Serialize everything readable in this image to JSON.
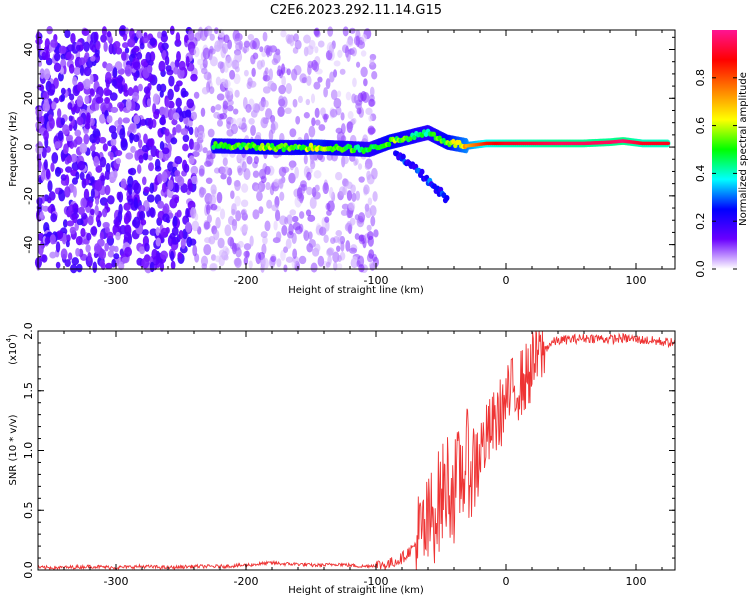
{
  "chart_data": [
    {
      "type": "heatmap",
      "title": "C2E6.2023.292.11.14.G15",
      "xlabel": "Height of straight line (km)",
      "ylabel": "Frequency (Hz)",
      "xlim": [
        -360,
        130
      ],
      "ylim": [
        -50,
        48
      ],
      "x_ticks": [
        -300,
        -200,
        -100,
        0,
        100
      ],
      "x_tick_labels": [
        "-300",
        "-200",
        "-100",
        "0",
        "100"
      ],
      "y_ticks": [
        -40,
        -20,
        0,
        20,
        40
      ],
      "y_tick_labels": [
        "-40",
        "-20",
        "0",
        "20",
        "40"
      ],
      "colorbar": {
        "label": "Normalized spectral amplitude",
        "range": [
          0.0,
          1.0
        ],
        "ticks": [
          0.0,
          0.2,
          0.4,
          0.6,
          0.8
        ],
        "tick_labels": [
          "0.0",
          "0.2",
          "0.4",
          "0.6",
          "0.8"
        ],
        "colors": [
          "#ffffff",
          "#6a00ff",
          "#0000ff",
          "#00ffff",
          "#00ff00",
          "#ffff00",
          "#ff8000",
          "#ff0000",
          "#ff1493"
        ]
      },
      "noise_region": {
        "x_range": [
          -360,
          -100
        ],
        "density": "high below -240 km"
      },
      "signal_trace": [
        {
          "x": -225,
          "y": 0.5,
          "v": 0.5
        },
        {
          "x": -205,
          "y": 0.3,
          "v": 0.5
        },
        {
          "x": -185,
          "y": 0.0,
          "v": 0.55
        },
        {
          "x": -165,
          "y": -0.2,
          "v": 0.5
        },
        {
          "x": -145,
          "y": 0.0,
          "v": 0.6
        },
        {
          "x": -125,
          "y": -0.5,
          "v": 0.5
        },
        {
          "x": -105,
          "y": -1.0,
          "v": 0.45
        },
        {
          "x": -90,
          "y": 2.0,
          "v": 0.55
        },
        {
          "x": -75,
          "y": 4.0,
          "v": 0.5
        },
        {
          "x": -60,
          "y": 6.0,
          "v": 0.45
        },
        {
          "x": -45,
          "y": 2.0,
          "v": 0.55
        },
        {
          "x": -30,
          "y": 0.5,
          "v": 0.7
        },
        {
          "x": -15,
          "y": 1.5,
          "v": 0.85
        },
        {
          "x": 0,
          "y": 1.5,
          "v": 0.9
        },
        {
          "x": 20,
          "y": 1.5,
          "v": 0.92
        },
        {
          "x": 40,
          "y": 1.5,
          "v": 0.95
        },
        {
          "x": 60,
          "y": 1.5,
          "v": 0.95
        },
        {
          "x": 80,
          "y": 2.0,
          "v": 0.95
        },
        {
          "x": 90,
          "y": 2.5,
          "v": 0.97
        },
        {
          "x": 105,
          "y": 1.5,
          "v": 0.9
        },
        {
          "x": 125,
          "y": 1.5,
          "v": 0.9
        }
      ],
      "descending_branch": [
        {
          "x": -85,
          "y": -3
        },
        {
          "x": -70,
          "y": -9
        },
        {
          "x": -55,
          "y": -16
        },
        {
          "x": -45,
          "y": -22
        }
      ]
    },
    {
      "type": "line",
      "xlabel": "Height of straight line (km)",
      "ylabel": "SNR (10 * v/v)",
      "scale_note": "(x10",
      "scale_exp": "4",
      "scale_close": ")",
      "xlim": [
        -360,
        130
      ],
      "ylim": [
        0,
        2.0
      ],
      "x_ticks": [
        -300,
        -200,
        -100,
        0,
        100
      ],
      "x_tick_labels": [
        "-300",
        "-200",
        "-100",
        "0",
        "100"
      ],
      "y_ticks": [
        0,
        0.5,
        1.0,
        1.5,
        2.0
      ],
      "y_tick_labels": [
        "0.0",
        "0.5",
        "1.0",
        "1.5",
        "2.0"
      ],
      "color": "#ee3333",
      "series": [
        {
          "x": [
            -360,
            -340,
            -320,
            -300,
            -280,
            -260,
            -240,
            -220,
            -200,
            -190,
            -180,
            -170,
            -160,
            -150,
            -140,
            -130,
            -120,
            -110,
            -100,
            -90,
            -80,
            -70,
            -60,
            -55,
            -50,
            -45,
            -40,
            -35,
            -30,
            -25,
            -20,
            -15,
            -10,
            -5,
            0,
            5,
            10,
            15,
            20,
            25,
            30,
            35,
            40,
            50,
            60,
            70,
            80,
            90,
            100,
            110,
            120,
            130
          ],
          "y": [
            0.02,
            0.02,
            0.03,
            0.02,
            0.03,
            0.02,
            0.03,
            0.03,
            0.04,
            0.05,
            0.06,
            0.05,
            0.05,
            0.04,
            0.04,
            0.05,
            0.04,
            0.03,
            0.04,
            0.05,
            0.1,
            0.2,
            0.35,
            0.5,
            0.6,
            0.75,
            0.65,
            0.8,
            0.9,
            0.85,
            1.0,
            1.1,
            1.2,
            1.3,
            1.4,
            1.5,
            1.55,
            1.6,
            1.7,
            1.8,
            1.85,
            1.9,
            1.92,
            1.93,
            1.94,
            1.94,
            1.93,
            1.94,
            1.93,
            1.92,
            1.91,
            1.9
          ]
        }
      ]
    }
  ]
}
